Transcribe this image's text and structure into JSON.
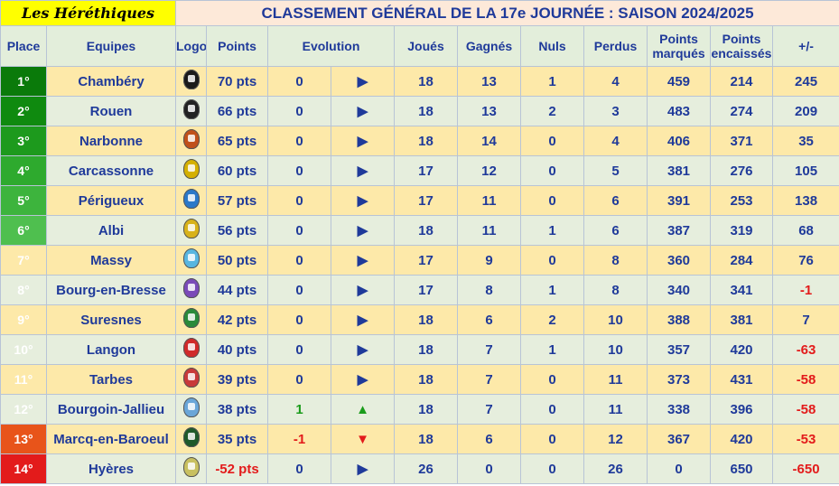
{
  "brand": "Les Héréthiques",
  "title": "CLASSEMENT GÉNÉRAL DE LA 17e JOURNÉE : SAISON 2024/2025",
  "headers": {
    "place": "Place",
    "equipes": "Equipes",
    "logo": "Logo",
    "points": "Points",
    "evolution": "Evolution",
    "joues": "Joués",
    "gagnes": "Gagnés",
    "nuls": "Nuls",
    "perdus": "Perdus",
    "points_marques": "Points marqués",
    "points_encaisses": "Points encaissés",
    "diff": "+/-"
  },
  "arrows": {
    "right": "▶",
    "up": "▲",
    "down": "▼"
  },
  "colors": {
    "header_bg": "#e3eedb",
    "row_even": "#e6eedd",
    "row_odd": "#fde9a9",
    "text": "#1f3a9a",
    "negative": "#e31b1b",
    "positive": "#1b9c1b"
  },
  "rows": [
    {
      "place": "1°",
      "team": "Chambéry",
      "logo": "chambery-logo",
      "points": "70 pts",
      "evol": "0",
      "arrow": "right",
      "joues": "18",
      "gagnes": "13",
      "nuls": "1",
      "perdus": "4",
      "pm": "459",
      "pe": "214",
      "diff": "245",
      "place_color": "#0a7a0a",
      "logo_color": "#1a1a1a"
    },
    {
      "place": "2°",
      "team": "Rouen",
      "logo": "rouen-logo",
      "points": "66 pts",
      "evol": "0",
      "arrow": "right",
      "joues": "18",
      "gagnes": "13",
      "nuls": "2",
      "perdus": "3",
      "pm": "483",
      "pe": "274",
      "diff": "209",
      "place_color": "#0f8a0f",
      "logo_color": "#222222"
    },
    {
      "place": "3°",
      "team": "Narbonne",
      "logo": "narbonne-logo",
      "points": "65 pts",
      "evol": "0",
      "arrow": "right",
      "joues": "18",
      "gagnes": "14",
      "nuls": "0",
      "perdus": "4",
      "pm": "406",
      "pe": "371",
      "diff": "35",
      "place_color": "#1d9a1d",
      "logo_color": "#c0501a"
    },
    {
      "place": "4°",
      "team": "Carcassonne",
      "logo": "carcassonne-logo",
      "points": "60 pts",
      "evol": "0",
      "arrow": "right",
      "joues": "17",
      "gagnes": "12",
      "nuls": "0",
      "perdus": "5",
      "pm": "381",
      "pe": "276",
      "diff": "105",
      "place_color": "#2eaa2e",
      "logo_color": "#d4b000"
    },
    {
      "place": "5°",
      "team": "Périgueux",
      "logo": "perigueux-logo",
      "points": "57 pts",
      "evol": "0",
      "arrow": "right",
      "joues": "17",
      "gagnes": "11",
      "nuls": "0",
      "perdus": "6",
      "pm": "391",
      "pe": "253",
      "diff": "138",
      "place_color": "#3db43d",
      "logo_color": "#2a78c8"
    },
    {
      "place": "6°",
      "team": "Albi",
      "logo": "albi-logo",
      "points": "56 pts",
      "evol": "0",
      "arrow": "right",
      "joues": "18",
      "gagnes": "11",
      "nuls": "1",
      "perdus": "6",
      "pm": "387",
      "pe": "319",
      "diff": "68",
      "place_color": "#4fbf4f",
      "logo_color": "#d8b21a"
    },
    {
      "place": "7°",
      "team": "Massy",
      "logo": "massy-logo",
      "points": "50 pts",
      "evol": "0",
      "arrow": "right",
      "joues": "17",
      "gagnes": "9",
      "nuls": "0",
      "perdus": "8",
      "pm": "360",
      "pe": "284",
      "diff": "76",
      "place_color": "",
      "logo_color": "#58b6e0"
    },
    {
      "place": "8°",
      "team": "Bourg-en-Bresse",
      "logo": "bourg-logo",
      "points": "44 pts",
      "evol": "0",
      "arrow": "right",
      "joues": "17",
      "gagnes": "8",
      "nuls": "1",
      "perdus": "8",
      "pm": "340",
      "pe": "341",
      "diff": "-1",
      "place_color": "",
      "logo_color": "#7a4ab8"
    },
    {
      "place": "9°",
      "team": "Suresnes",
      "logo": "suresnes-logo",
      "points": "42 pts",
      "evol": "0",
      "arrow": "right",
      "joues": "18",
      "gagnes": "6",
      "nuls": "2",
      "perdus": "10",
      "pm": "388",
      "pe": "381",
      "diff": "7",
      "place_color": "",
      "logo_color": "#2a8a3a"
    },
    {
      "place": "10°",
      "team": "Langon",
      "logo": "langon-logo",
      "points": "40 pts",
      "evol": "0",
      "arrow": "right",
      "joues": "18",
      "gagnes": "7",
      "nuls": "1",
      "perdus": "10",
      "pm": "357",
      "pe": "420",
      "diff": "-63",
      "place_color": "",
      "logo_color": "#d02a2a"
    },
    {
      "place": "11°",
      "team": "Tarbes",
      "logo": "tarbes-logo",
      "points": "39 pts",
      "evol": "0",
      "arrow": "right",
      "joues": "18",
      "gagnes": "7",
      "nuls": "0",
      "perdus": "11",
      "pm": "373",
      "pe": "431",
      "diff": "-58",
      "place_color": "",
      "logo_color": "#c83a3a"
    },
    {
      "place": "12°",
      "team": "Bourgoin-Jallieu",
      "logo": "bourgoin-logo",
      "points": "38 pts",
      "evol": "1",
      "arrow": "up",
      "joues": "18",
      "gagnes": "7",
      "nuls": "0",
      "perdus": "11",
      "pm": "338",
      "pe": "396",
      "diff": "-58",
      "place_color": "",
      "logo_color": "#6aa6d8"
    },
    {
      "place": "13°",
      "team": "Marcq-en-Baroeul",
      "logo": "marcq-logo",
      "points": "35 pts",
      "evol": "-1",
      "arrow": "down",
      "joues": "18",
      "gagnes": "6",
      "nuls": "0",
      "perdus": "12",
      "pm": "367",
      "pe": "420",
      "diff": "-53",
      "place_color": "#e8541a",
      "logo_color": "#1f5a2a"
    },
    {
      "place": "14°",
      "team": "Hyères",
      "logo": "hyeres-logo",
      "points": "-52 pts",
      "evol": "0",
      "arrow": "right",
      "joues": "26",
      "gagnes": "0",
      "nuls": "0",
      "perdus": "26",
      "pm": "0",
      "pe": "650",
      "diff": "-650",
      "place_color": "#e31b1b",
      "logo_color": "#c8c060"
    }
  ]
}
